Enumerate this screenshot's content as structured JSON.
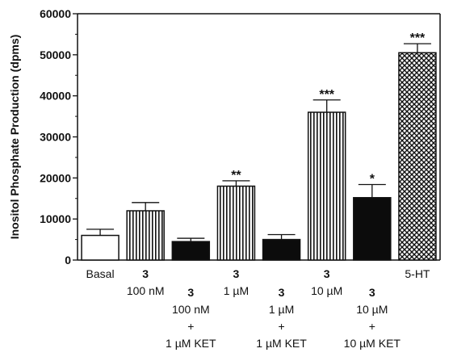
{
  "chart_data": {
    "type": "bar",
    "ylabel": "Inositol Phosphate Production (dpms)",
    "ylim": [
      0,
      60000
    ],
    "yticks": [
      "0",
      "10000",
      "20000",
      "30000",
      "40000",
      "50000",
      "60000"
    ],
    "grid": false,
    "categories": [
      {
        "lines": [
          "Basal"
        ]
      },
      {
        "lines": [
          "3",
          "100 nM"
        ]
      },
      {
        "lines": [
          "3",
          "100 nM",
          "+",
          "1 µM KET"
        ]
      },
      {
        "lines": [
          "3",
          "1 µM"
        ]
      },
      {
        "lines": [
          "3",
          "1 µM",
          "+",
          "1 µM KET"
        ]
      },
      {
        "lines": [
          "3",
          "10 µM"
        ]
      },
      {
        "lines": [
          "3",
          "10 µM",
          "+",
          "10 µM KET"
        ]
      },
      {
        "lines": [
          "5-HT"
        ]
      }
    ],
    "values": [
      6000,
      12000,
      4500,
      18000,
      5000,
      36000,
      15200,
      50500
    ],
    "errors": [
      1500,
      2000,
      800,
      1300,
      1200,
      3000,
      3200,
      2200
    ],
    "significance": [
      "",
      "",
      "",
      "**",
      "",
      "***",
      "*",
      "***"
    ],
    "fills": [
      "white",
      "vertical-stripes",
      "solid-black",
      "vertical-stripes",
      "solid-black",
      "vertical-stripes",
      "solid-black",
      "crosshatch"
    ]
  }
}
